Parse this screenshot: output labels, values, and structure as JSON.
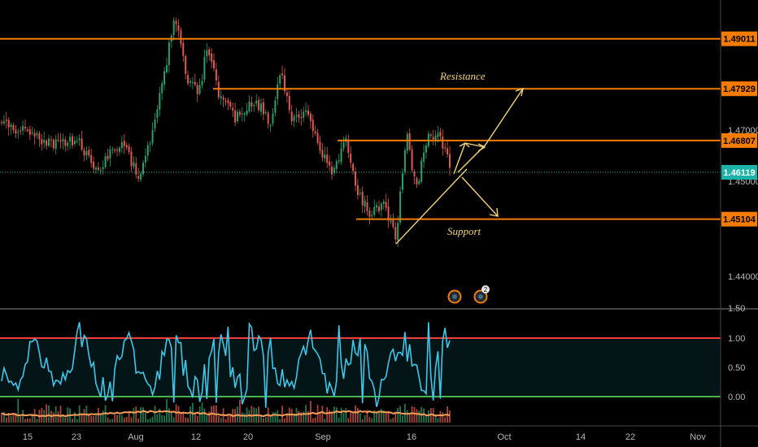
{
  "chart_data": {
    "type": "candlestick",
    "price_axis": {
      "ticks": [
        "1.47000",
        "1.45000",
        "1.44000"
      ],
      "range": [
        1.432,
        1.512
      ]
    },
    "time_axis": {
      "ticks": [
        "15",
        "23",
        "Aug",
        "12",
        "20",
        "Sep",
        "16",
        "Oct",
        "14",
        "22",
        "Nov"
      ]
    },
    "levels": [
      {
        "name": "level-1",
        "price": 1.49011,
        "label": "1.49011"
      },
      {
        "name": "level-2",
        "price": 1.47929,
        "label": "1.47929"
      },
      {
        "name": "level-3",
        "price": 1.46807,
        "label": "1.46807"
      },
      {
        "name": "level-4",
        "price": 1.45104,
        "label": "1.45104"
      }
    ],
    "current_price": {
      "price": 1.46119,
      "label": "1.46119"
    },
    "annotations": {
      "resistance": "Resistance",
      "support": "Support"
    },
    "indicator": {
      "ticks": [
        "1.50",
        "1.00",
        "0.50",
        "0.00"
      ],
      "upper_band": 1.0,
      "lower_band": 0.0
    },
    "event_badge_count": "2",
    "colors": {
      "background": "#000000",
      "up": "#2e9e6a",
      "down": "#e05a4f",
      "level": "#f57c00",
      "arrow": "#f5d37a",
      "current": "#1bb3a7",
      "oscillator": "#3fc6e8",
      "upper_band": "#f23c3c",
      "lower_band": "#4caf50"
    }
  }
}
